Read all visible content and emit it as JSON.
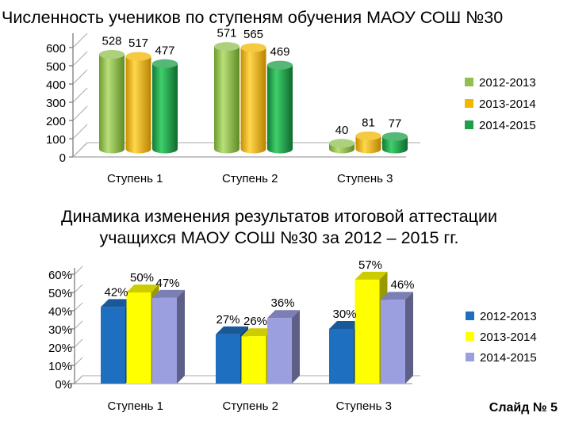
{
  "slide": {
    "label": "Слайд № 5"
  },
  "chart_data": [
    {
      "type": "bar",
      "title": "Численность учеников по ступеням обучения МАОУ СОШ №30",
      "categories": [
        "Ступень 1",
        "Ступень 2",
        "Ступень 3"
      ],
      "series": [
        {
          "name": "2012-2013",
          "values": [
            528,
            571,
            40
          ],
          "color": "#92c050"
        },
        {
          "name": "2013-2014",
          "values": [
            517,
            565,
            81
          ],
          "color": "#f2b800"
        },
        {
          "name": "2014-2015",
          "values": [
            477,
            469,
            77
          ],
          "color": "#1ea04a"
        }
      ],
      "ylim": [
        0,
        600
      ],
      "yticks": [
        "0",
        "100",
        "200",
        "300",
        "400",
        "500",
        "600"
      ],
      "legend": "right",
      "grid": false,
      "shape": "cylinder"
    },
    {
      "type": "bar",
      "title": "Динамика изменения результатов итоговой аттестации учащихся МАОУ СОШ №30 за 2012 – 2015 гг.",
      "title_lines": [
        "Динамика изменения результатов итоговой аттестации",
        "учащихся МАОУ СОШ №30 за 2012 – 2015 гг."
      ],
      "categories": [
        "Ступень 1",
        "Ступень 2",
        "Ступень 3"
      ],
      "series": [
        {
          "name": "2012-2013",
          "values": [
            42,
            27,
            30
          ],
          "labels": [
            "42%",
            "27%",
            "30%"
          ],
          "color": "#1f6fc0"
        },
        {
          "name": "2013-2014",
          "values": [
            50,
            26,
            57
          ],
          "labels": [
            "50%",
            "26%",
            "57%"
          ],
          "color": "#ffff00"
        },
        {
          "name": "2014-2015",
          "values": [
            47,
            36,
            46
          ],
          "labels": [
            "47%",
            "36%",
            "46%"
          ],
          "color": "#9b9fe0"
        }
      ],
      "ylim": [
        0,
        60
      ],
      "yticks": [
        "0%",
        "10%",
        "20%",
        "30%",
        "40%",
        "50%",
        "60%"
      ],
      "legend": "right",
      "grid": false,
      "shape": "3d-box"
    }
  ]
}
